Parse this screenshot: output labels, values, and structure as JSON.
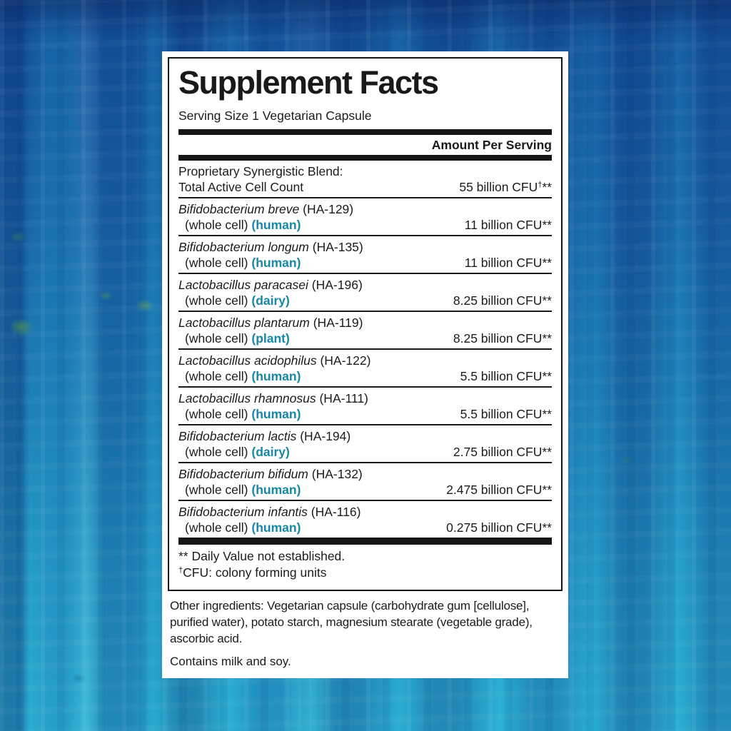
{
  "colors": {
    "accent_teal": "#1787a6",
    "ink": "#1b1b1b",
    "card_bg": "#ffffff"
  },
  "label": {
    "title": "Supplement Facts",
    "serving_size": "Serving Size 1 Vegetarian Capsule",
    "amount_per_serving": "Amount Per Serving",
    "blend": {
      "name_line1": "Proprietary Synergistic Blend:",
      "name_line2": "Total Active Cell Count",
      "amount": "55 billion CFU",
      "amount_dagger": "†",
      "amount_asterisks": "**"
    },
    "ingredients": [
      {
        "species": "Bifidobacterium breve",
        "strain": "(HA-129)",
        "form": "(whole cell)",
        "source": "(human)",
        "amount": "11 billion CFU**"
      },
      {
        "species": "Bifidobacterium longum",
        "strain": "(HA-135)",
        "form": "(whole cell)",
        "source": "(human)",
        "amount": "11 billion CFU**"
      },
      {
        "species": "Lactobacillus paracasei",
        "strain": "(HA-196)",
        "form": "(whole cell)",
        "source": "(dairy)",
        "amount": "8.25 billion CFU**"
      },
      {
        "species": "Lactobacillus plantarum",
        "strain": "(HA-119)",
        "form": "(whole cell)",
        "source": "(plant)",
        "amount": "8.25 billion CFU**"
      },
      {
        "species": "Lactobacillus acidophilus",
        "strain": "(HA-122)",
        "form": "(whole cell)",
        "source": "(human)",
        "amount": "5.5 billion CFU**"
      },
      {
        "species": "Lactobacillus rhamnosus",
        "strain": "(HA-111)",
        "form": "(whole cell)",
        "source": "(human)",
        "amount": "5.5 billion CFU**"
      },
      {
        "species": "Bifidobacterium lactis",
        "strain": "(HA-194)",
        "form": "(whole cell)",
        "source": "(dairy)",
        "amount": "2.75 billion CFU**"
      },
      {
        "species": "Bifidobacterium bifidum",
        "strain": "(HA-132)",
        "form": "(whole cell)",
        "source": "(human)",
        "amount": "2.475 billion CFU**"
      },
      {
        "species": "Bifidobacterium infantis",
        "strain": "(HA-116)",
        "form": "(whole cell)",
        "source": "(human)",
        "amount": "0.275 billion CFU**"
      }
    ],
    "footnote_daily_value": "** Daily Value not established.",
    "footnote_cfu_dagger": "†",
    "footnote_cfu_text": "CFU: colony forming units",
    "other_ingredients": "Other ingredients: Vegetarian capsule (carbohydrate gum [cellulose], purified water), potato starch, magnesium stearate (vegetable grade), ascorbic acid.",
    "contains": "Contains milk and soy."
  }
}
